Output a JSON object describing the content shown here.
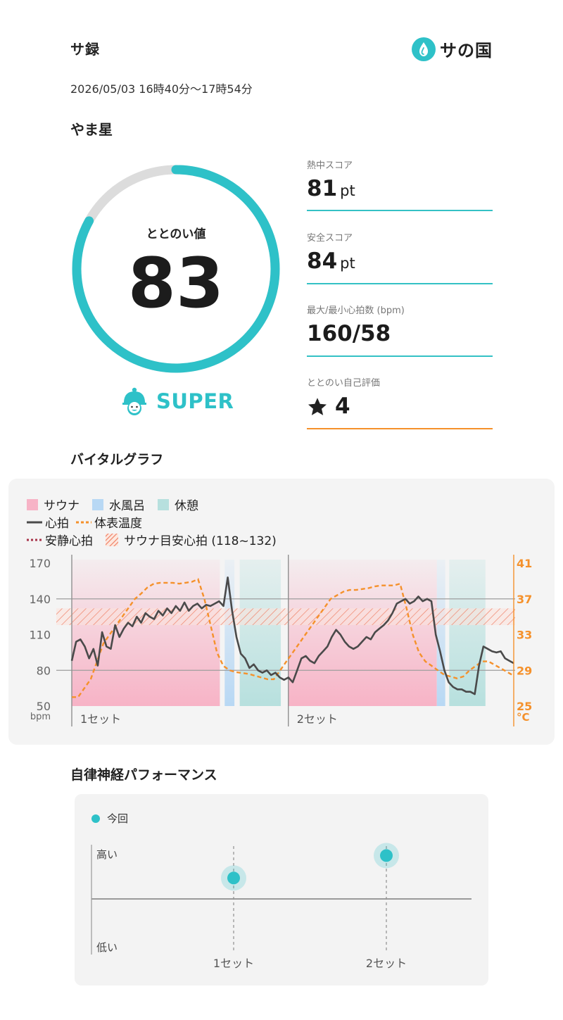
{
  "header": {
    "title": "サ録",
    "brand_name": "サの国"
  },
  "session": {
    "date_range": "2026/05/03 16時40分〜17時54分",
    "facility": "やま星"
  },
  "totonoi": {
    "label": "ととのい値",
    "value": "83",
    "score": 83,
    "max": 100,
    "rank": "SUPER"
  },
  "metrics": [
    {
      "label": "熱中スコア",
      "value": "81",
      "unit": "pt"
    },
    {
      "label": "安全スコア",
      "value": "84",
      "unit": "pt"
    },
    {
      "label": "最大/最小心拍数 (bpm)",
      "value": "160/58",
      "unit": ""
    },
    {
      "label": "ととのい自己評価",
      "value": "4",
      "unit": "",
      "icon": "star-icon"
    }
  ],
  "vital": {
    "title": "バイタルグラフ",
    "legend": {
      "sauna": "サウナ",
      "water_bath": "水風呂",
      "rest": "休憩",
      "heart_rate": "心拍",
      "skin_temp": "体表温度",
      "resting_hr": "安静心拍",
      "target_hr": "サウナ目安心拍 (118~132)"
    },
    "colors": {
      "sauna": "#f7b3c6",
      "water_bath": "#b8d8f4",
      "rest": "#b7e0de",
      "heart_rate": "#4a4a4a",
      "skin_temp": "#f5912b",
      "teal": "#2ec1c8"
    }
  },
  "chart_data": {
    "type": "line",
    "left_axis": {
      "unit": "bpm",
      "ticks": [
        "170",
        "140",
        "110",
        "80",
        "50"
      ],
      "range": [
        50,
        170
      ]
    },
    "right_axis": {
      "unit": "°C",
      "ticks": [
        "41",
        "37",
        "33",
        "29",
        "25"
      ],
      "range": [
        25,
        41
      ]
    },
    "x_labels": [
      "1セット",
      "2セット"
    ],
    "target_band": [
      118,
      132
    ],
    "series": [
      {
        "name": "心拍",
        "axis": "left",
        "values": [
          88,
          104,
          106,
          100,
          90,
          98,
          84,
          112,
          100,
          98,
          118,
          108,
          115,
          120,
          117,
          125,
          120,
          128,
          125,
          123,
          130,
          126,
          132,
          128,
          134,
          130,
          137,
          130,
          134,
          136,
          132,
          135,
          134,
          136,
          138,
          134,
          158,
          130,
          108,
          94,
          90,
          82,
          85,
          80,
          78,
          80,
          76,
          78,
          74,
          72,
          74,
          70,
          80,
          90,
          92,
          88,
          86,
          92,
          96,
          100,
          108,
          114,
          110,
          104,
          100,
          98,
          100,
          104,
          108,
          106,
          112,
          115,
          118,
          122,
          128,
          136,
          138,
          140,
          136,
          138,
          142,
          138,
          140,
          138,
          110,
          96,
          80,
          70,
          66,
          64,
          64,
          62,
          62,
          60,
          84,
          100,
          98,
          96,
          95,
          96,
          90,
          88,
          86
        ]
      },
      {
        "name": "体表温度",
        "axis": "right",
        "values": [
          26,
          26,
          27,
          28,
          30,
          32,
          33,
          34,
          35,
          36,
          37,
          37.6,
          38.3,
          38.7,
          38.8,
          38.8,
          38.8,
          38.7,
          38.8,
          38.9,
          39.2,
          37,
          34,
          31,
          29.5,
          29,
          28.8,
          28.7,
          28.6,
          28.4,
          28.2,
          28,
          28,
          29,
          30,
          31,
          32,
          33,
          34,
          35,
          36,
          37,
          37.4,
          37.8,
          38,
          38,
          38.1,
          38.2,
          38.4,
          38.5,
          38.5,
          38.5,
          38.7,
          36,
          33,
          31,
          30,
          29.5,
          29,
          28.5,
          28.3,
          28.1,
          28.3,
          29,
          29.5,
          30,
          30,
          29.6,
          29.2,
          28.8,
          28.4
        ]
      }
    ],
    "phases": {
      "sauna": [
        [
          0,
          0.335
        ],
        [
          0.49,
          0.826
        ]
      ],
      "water_bath": [
        [
          0.346,
          0.368
        ],
        [
          0.826,
          0.845
        ]
      ],
      "rest": [
        [
          0.38,
          0.473
        ],
        [
          0.854,
          0.936
        ]
      ]
    },
    "set_starts": [
      0,
      0.49
    ]
  },
  "ans": {
    "title": "自律神経パフォーマンス",
    "legend": "今回",
    "y_high": "高い",
    "y_low": "低い",
    "chart_data": {
      "type": "scatter",
      "categories": [
        "1セット",
        "2セット"
      ],
      "series": [
        {
          "name": "今回",
          "values": [
            0.27,
            0.56
          ]
        }
      ],
      "ylim": [
        -1,
        1
      ]
    }
  }
}
